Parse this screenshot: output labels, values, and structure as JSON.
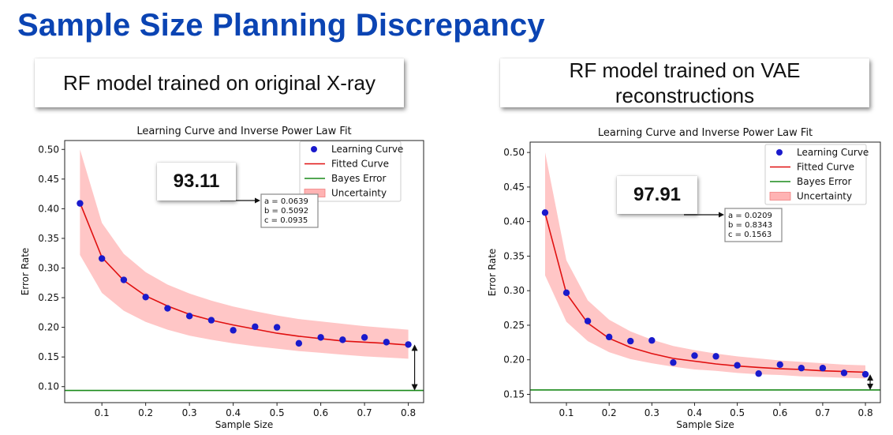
{
  "title": "Sample Size Planning Discrepancy",
  "chart_data": [
    {
      "type": "scatter",
      "caption": "RF model trained on original X-ray",
      "score": "93.11",
      "title": "Learning Curve and Inverse Power Law Fit",
      "xlabel": "Sample Size",
      "ylabel": "Error Rate",
      "xlim": [
        0.015,
        0.835
      ],
      "ylim": [
        0.073,
        0.515
      ],
      "xticks": [
        0.1,
        0.2,
        0.3,
        0.4,
        0.5,
        0.6,
        0.7,
        0.8
      ],
      "yticks": [
        0.1,
        0.15,
        0.2,
        0.25,
        0.3,
        0.35,
        0.4,
        0.45,
        0.5
      ],
      "ytick_labels": [
        "0.10",
        "0.15",
        "0.20",
        "0.25",
        "0.30",
        "0.35",
        "0.40",
        "0.45",
        "0.50"
      ],
      "xtick_labels": [
        "0.1",
        "0.2",
        "0.3",
        "0.4",
        "0.5",
        "0.6",
        "0.7",
        "0.8"
      ],
      "legend_position": "top-right",
      "legend": [
        "Learning Curve",
        "Fitted Curve",
        "Bayes Error",
        "Uncertainty"
      ],
      "params": [
        "a = 0.0639",
        "b = 0.5092",
        "c = 0.0935"
      ],
      "bayes_error": 0.0935,
      "series": [
        {
          "name": "Learning Curve",
          "x": [
            0.05,
            0.1,
            0.15,
            0.2,
            0.25,
            0.3,
            0.35,
            0.4,
            0.45,
            0.5,
            0.55,
            0.6,
            0.65,
            0.7,
            0.75,
            0.8
          ],
          "y": [
            0.409,
            0.316,
            0.28,
            0.251,
            0.232,
            0.219,
            0.212,
            0.195,
            0.201,
            0.2,
            0.173,
            0.183,
            0.179,
            0.183,
            0.175,
            0.171
          ]
        },
        {
          "name": "Fitted Curve",
          "x": [
            0.05,
            0.1,
            0.15,
            0.2,
            0.25,
            0.3,
            0.35,
            0.4,
            0.45,
            0.5,
            0.55,
            0.6,
            0.65,
            0.7,
            0.75,
            0.8
          ],
          "y": [
            0.41,
            0.318,
            0.279,
            0.253,
            0.236,
            0.222,
            0.212,
            0.204,
            0.197,
            0.19,
            0.185,
            0.181,
            0.177,
            0.175,
            0.173,
            0.17
          ]
        },
        {
          "name": "Uncertainty",
          "x": [
            0.05,
            0.1,
            0.15,
            0.2,
            0.25,
            0.3,
            0.35,
            0.4,
            0.45,
            0.5,
            0.55,
            0.6,
            0.65,
            0.7,
            0.75,
            0.8
          ],
          "upper": [
            0.5,
            0.376,
            0.324,
            0.293,
            0.272,
            0.257,
            0.245,
            0.235,
            0.227,
            0.22,
            0.214,
            0.21,
            0.206,
            0.202,
            0.199,
            0.196
          ],
          "lower": [
            0.322,
            0.258,
            0.228,
            0.209,
            0.196,
            0.186,
            0.179,
            0.173,
            0.168,
            0.164,
            0.16,
            0.157,
            0.154,
            0.151,
            0.149,
            0.147
          ]
        }
      ]
    },
    {
      "type": "scatter",
      "caption": "RF model trained on VAE reconstructions",
      "score": "97.91",
      "title": "Learning Curve and Inverse Power Law Fit",
      "xlabel": "Sample Size",
      "ylabel": "Error Rate",
      "xlim": [
        0.015,
        0.835
      ],
      "ylim": [
        0.138,
        0.515
      ],
      "xticks": [
        0.1,
        0.2,
        0.3,
        0.4,
        0.5,
        0.6,
        0.7,
        0.8
      ],
      "yticks": [
        0.15,
        0.2,
        0.25,
        0.3,
        0.35,
        0.4,
        0.45,
        0.5
      ],
      "ytick_labels": [
        "0.15",
        "0.20",
        "0.25",
        "0.30",
        "0.35",
        "0.40",
        "0.45",
        "0.50"
      ],
      "xtick_labels": [
        "0.1",
        "0.2",
        "0.3",
        "0.4",
        "0.5",
        "0.6",
        "0.7",
        "0.8"
      ],
      "legend_position": "top-right",
      "legend": [
        "Learning Curve",
        "Fitted Curve",
        "Bayes Error",
        "Uncertainty"
      ],
      "params": [
        "a = 0.0209",
        "b = 0.8343",
        "c = 0.1563"
      ],
      "bayes_error": 0.1563,
      "series": [
        {
          "name": "Learning Curve",
          "x": [
            0.05,
            0.1,
            0.15,
            0.2,
            0.25,
            0.3,
            0.35,
            0.4,
            0.45,
            0.5,
            0.55,
            0.6,
            0.65,
            0.7,
            0.75,
            0.8
          ],
          "y": [
            0.413,
            0.297,
            0.256,
            0.233,
            0.227,
            0.228,
            0.196,
            0.206,
            0.205,
            0.192,
            0.18,
            0.193,
            0.188,
            0.188,
            0.181,
            0.179
          ]
        },
        {
          "name": "Fitted Curve",
          "x": [
            0.05,
            0.1,
            0.15,
            0.2,
            0.25,
            0.3,
            0.35,
            0.4,
            0.45,
            0.5,
            0.55,
            0.6,
            0.65,
            0.7,
            0.75,
            0.8
          ],
          "y": [
            0.412,
            0.296,
            0.253,
            0.231,
            0.218,
            0.209,
            0.202,
            0.198,
            0.194,
            0.191,
            0.189,
            0.187,
            0.186,
            0.184,
            0.183,
            0.182
          ]
        },
        {
          "name": "Uncertainty",
          "x": [
            0.05,
            0.1,
            0.15,
            0.2,
            0.25,
            0.3,
            0.35,
            0.4,
            0.45,
            0.5,
            0.55,
            0.6,
            0.65,
            0.7,
            0.75,
            0.8
          ],
          "upper": [
            0.5,
            0.344,
            0.286,
            0.258,
            0.241,
            0.229,
            0.22,
            0.214,
            0.209,
            0.205,
            0.202,
            0.199,
            0.197,
            0.195,
            0.193,
            0.192
          ],
          "lower": [
            0.322,
            0.255,
            0.227,
            0.211,
            0.201,
            0.195,
            0.19,
            0.186,
            0.184,
            0.181,
            0.179,
            0.178,
            0.176,
            0.175,
            0.174,
            0.173
          ]
        }
      ]
    }
  ]
}
